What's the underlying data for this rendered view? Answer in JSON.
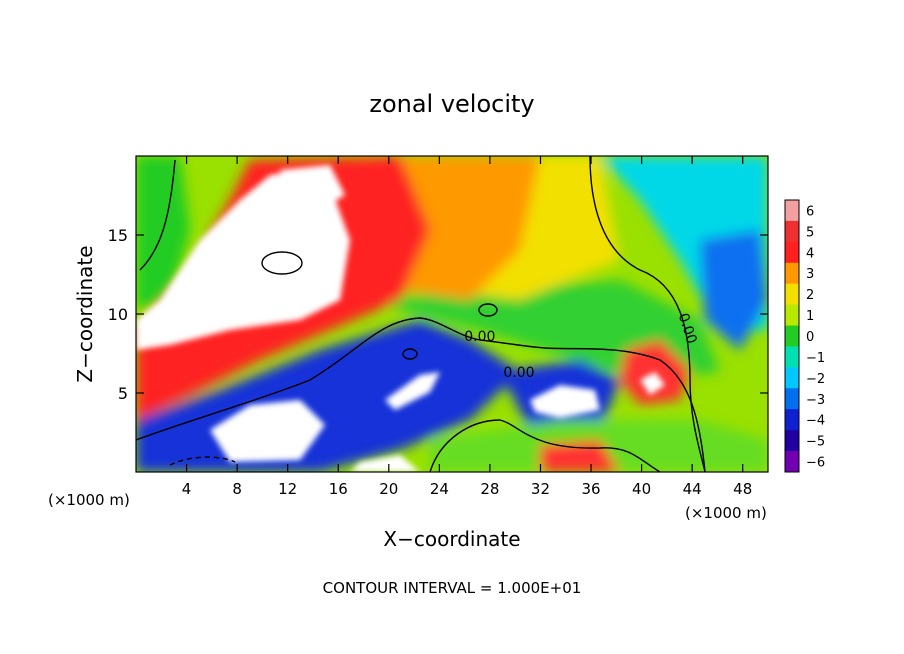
{
  "chart_data": {
    "type": "heatmap",
    "title": "zonal velocity",
    "xlabel": "X−coordinate",
    "ylabel": "Z−coordinate",
    "x_unit_left": "(×1000 m)",
    "x_unit_right": "(×1000 m)",
    "footer": "CONTOUR INTERVAL = 1.000E+01",
    "xlim": [
      0,
      50
    ],
    "ylim": [
      0,
      20
    ],
    "x_ticks": [
      4,
      8,
      12,
      16,
      20,
      24,
      28,
      32,
      36,
      40,
      44,
      48
    ],
    "y_ticks": [
      5,
      10,
      15
    ],
    "colorbar": {
      "levels": [
        6,
        5,
        4,
        3,
        2,
        1,
        0,
        -1,
        -2,
        -3,
        -4,
        -5,
        -6
      ],
      "labels": [
        "6",
        "5",
        "4",
        "3",
        "2",
        "1",
        "0",
        "−1",
        "−2",
        "−3",
        "−4",
        "−5",
        "−6"
      ],
      "colors": [
        "#f5a0a0",
        "#f03030",
        "#ff2020",
        "#ff9900",
        "#f2e000",
        "#b8ea00",
        "#22cc22",
        "#00e0b0",
        "#00c8ff",
        "#0070f0",
        "#1020d0",
        "#2000a0",
        "#7000b0"
      ]
    },
    "contour_labels": [
      {
        "text": "0.00",
        "x": 27.2,
        "z": 8.3
      },
      {
        "text": "0.00",
        "x": 30.3,
        "z": 6.0
      },
      {
        "text": "0.00",
        "x": 43.3,
        "z": 9.0
      }
    ]
  }
}
